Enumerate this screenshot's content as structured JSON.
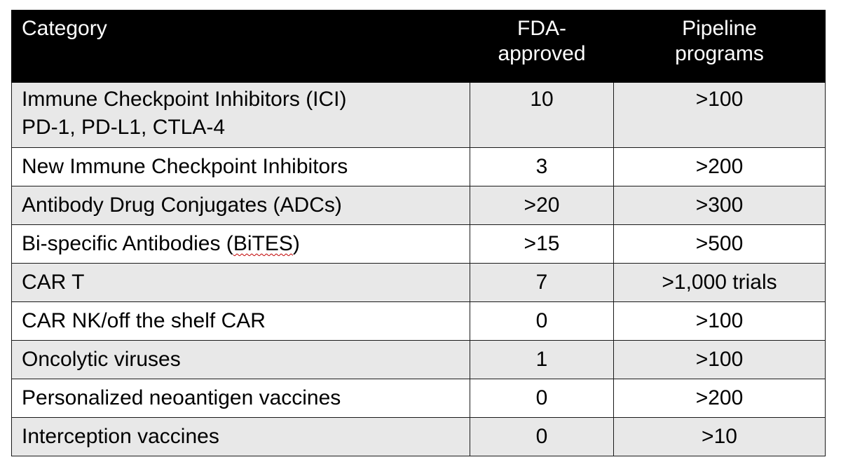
{
  "table": {
    "headers": {
      "category": "Category",
      "fda_line1": "FDA-",
      "fda_line2": "approved",
      "pipeline_line1": "Pipeline",
      "pipeline_line2": "programs"
    },
    "rows": [
      {
        "category": "Immune Checkpoint Inhibitors (ICI)",
        "subtitle": "PD-1, PD-L1, CTLA-4",
        "fda": "10",
        "pipeline": ">100"
      },
      {
        "category": "New Immune Checkpoint Inhibitors",
        "fda": "3",
        "pipeline": ">200"
      },
      {
        "category": "Antibody Drug Conjugates (ADCs)",
        "fda": ">20",
        "pipeline": ">300"
      },
      {
        "category_prefix": "Bi-specific Antibodies (",
        "category_flagged": "BiTES",
        "category_suffix": ")",
        "fda": ">15",
        "pipeline": ">500"
      },
      {
        "category": "CAR T",
        "fda": "7",
        "pipeline": ">1,000 trials"
      },
      {
        "category": "CAR NK/off the shelf CAR",
        "fda": "0",
        "pipeline": ">100"
      },
      {
        "category": "Oncolytic viruses",
        "fda": "1",
        "pipeline": ">100"
      },
      {
        "category": "Personalized neoantigen vaccines",
        "fda": "0",
        "pipeline": ">200"
      },
      {
        "category": "Interception vaccines",
        "fda": "0",
        "pipeline": ">10"
      }
    ]
  },
  "colors": {
    "header_bg": "#000000",
    "header_text": "#ffffff",
    "row_shaded": "#e8e8e8",
    "row_plain": "#ffffff",
    "spellcheck_underline": "#c00000"
  }
}
